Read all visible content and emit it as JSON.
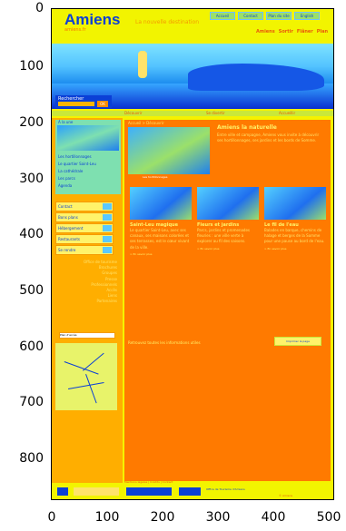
{
  "axes": {
    "y_ticks": [
      "0",
      "100",
      "200",
      "300",
      "400",
      "500",
      "600",
      "700",
      "800"
    ],
    "x_ticks": [
      "0",
      "100",
      "200",
      "300",
      "400",
      "500"
    ]
  },
  "header": {
    "logo": "Amiens",
    "logo_sub": "amiens.fr",
    "slogan": "La nouvelle destination",
    "top_links": [
      "Accueil",
      "Contact",
      "Plan du site",
      "English"
    ],
    "nav": [
      "Amiens",
      "Sortir",
      "Flâner",
      "Plan"
    ]
  },
  "search": {
    "label": "Rechercher",
    "placeholder": "",
    "go": "OK"
  },
  "strip": [
    "Découvrir",
    "Se divertir",
    "Accueillir"
  ],
  "main": {
    "breadcrumb": "Accueil > Découvrir",
    "feature_title": "Amiens la naturelle",
    "feature_text": "Entre ville et campagne, Amiens vous invite à découvrir ses hortillonnages, ses jardins et les bords de Somme.",
    "feature_caption": "Les hortillonnages",
    "columns": [
      {
        "title": "Saint-Leu magique",
        "text": "Le quartier Saint-Leu, avec ses canaux, ses maisons colorées et ses terrasses, est le cœur vivant de la ville.",
        "more": "> En savoir plus"
      },
      {
        "title": "Fleurs et jardins",
        "text": "Parcs, jardins et promenades fleuries : une ville verte à explorer au fil des saisons.",
        "more": "> En savoir plus"
      },
      {
        "title": "Le fil de l'eau",
        "text": "Balades en barque, chemins de halage et berges de la Somme pour une pause au bord de l'eau.",
        "more": "> En savoir plus"
      }
    ],
    "pager": "Retrouvez toutes les informations utiles",
    "print": "Imprimer la page"
  },
  "sidebar": {
    "box_title": "À la une",
    "box_links": [
      "Les hortillonnages",
      "Le quartier Saint-Leu",
      "La cathédrale",
      "Les parcs",
      "Agenda"
    ],
    "buttons": [
      "Contact",
      "Bons plans",
      "Hébergement",
      "Restaurants",
      "Se rendre"
    ],
    "links": [
      "Office de tourisme",
      "Brochures",
      "Groupes",
      "Presse",
      "Professionnels",
      "Accès",
      "Liens",
      "Partenaires"
    ],
    "map_label": "Plan d'accès"
  },
  "footer": {
    "links": "Mentions légales | Crédits | Contact",
    "address": "Office de Tourisme d'Amiens",
    "copyright": "© Amiens"
  }
}
